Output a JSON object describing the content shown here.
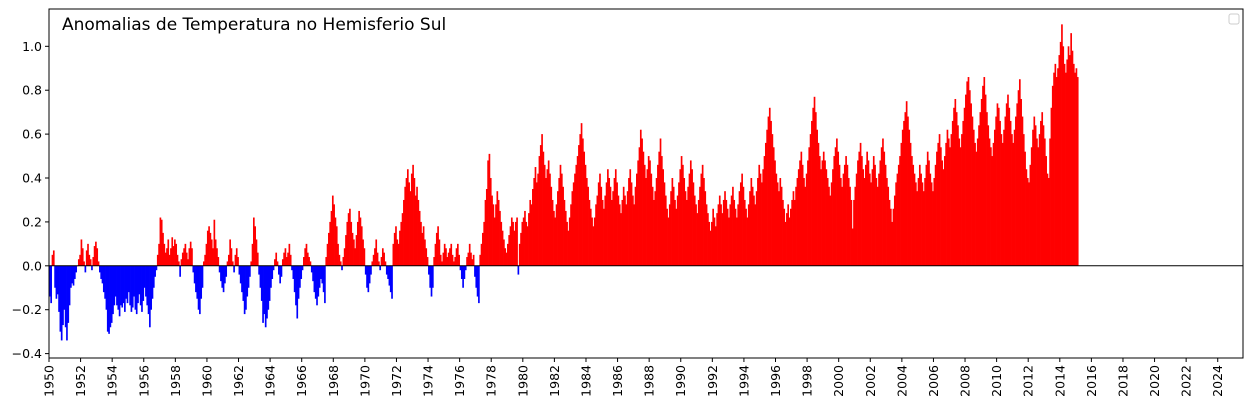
{
  "chart_data": {
    "type": "bar",
    "title": "Anomalias de Temperatura no Hemisferio Sul",
    "xlabel": "",
    "ylabel": "",
    "x_range": [
      1950,
      2025.6
    ],
    "ylim": [
      -0.42,
      1.17
    ],
    "x_ticks": [
      "1950",
      "1952",
      "1954",
      "1956",
      "1958",
      "1960",
      "1962",
      "1964",
      "1966",
      "1968",
      "1970",
      "1972",
      "1974",
      "1976",
      "1978",
      "1980",
      "1982",
      "1984",
      "1986",
      "1988",
      "1990",
      "1992",
      "1994",
      "1996",
      "1998",
      "2000",
      "2002",
      "2004",
      "2006",
      "2008",
      "2010",
      "2012",
      "2014",
      "2016",
      "2018",
      "2020",
      "2022",
      "2024"
    ],
    "y_ticks": [
      "−0.4",
      "−0.2",
      "0.0",
      "0.2",
      "0.4",
      "0.6",
      "0.8",
      "1.0"
    ],
    "y_tick_values": [
      -0.4,
      -0.2,
      0.0,
      0.2,
      0.4,
      0.6,
      0.8,
      1.0
    ],
    "positive_color": "#ff0000",
    "negative_color": "#0000ff",
    "grid": false,
    "legend": "top-right (empty)",
    "series": [
      {
        "frequency": "monthly",
        "start": "1950-01",
        "values": [
          -0.14,
          -0.17,
          0.05,
          0.07,
          -0.1,
          -0.15,
          -0.13,
          -0.21,
          -0.3,
          -0.34,
          -0.27,
          -0.2,
          -0.28,
          -0.34,
          -0.26,
          -0.18,
          -0.1,
          -0.08,
          -0.09,
          -0.06,
          -0.03,
          0.0,
          0.03,
          0.05,
          0.12,
          0.08,
          0.02,
          -0.03,
          0.07,
          0.1,
          0.05,
          0.03,
          -0.02,
          0.04,
          0.09,
          0.11,
          0.08,
          0.02,
          -0.03,
          -0.06,
          -0.08,
          -0.12,
          -0.15,
          -0.2,
          -0.3,
          -0.31,
          -0.28,
          -0.26,
          -0.22,
          -0.18,
          -0.14,
          -0.18,
          -0.2,
          -0.23,
          -0.18,
          -0.19,
          -0.17,
          -0.21,
          -0.15,
          -0.17,
          -0.12,
          -0.18,
          -0.21,
          -0.19,
          -0.14,
          -0.2,
          -0.22,
          -0.17,
          -0.13,
          -0.18,
          -0.21,
          -0.16,
          -0.1,
          -0.14,
          -0.18,
          -0.22,
          -0.28,
          -0.2,
          -0.15,
          -0.1,
          -0.05,
          -0.02,
          0.05,
          0.1,
          0.22,
          0.21,
          0.15,
          0.1,
          0.06,
          0.08,
          0.12,
          0.05,
          0.08,
          0.13,
          0.09,
          0.12,
          0.1,
          0.05,
          0.02,
          -0.05,
          0.03,
          0.06,
          0.08,
          0.1,
          0.06,
          0.03,
          0.08,
          0.11,
          0.08,
          -0.03,
          -0.08,
          -0.12,
          -0.15,
          -0.2,
          -0.22,
          -0.15,
          -0.1,
          0.02,
          0.05,
          0.1,
          0.16,
          0.18,
          0.15,
          0.12,
          0.08,
          0.21,
          0.12,
          0.08,
          0.04,
          -0.03,
          -0.07,
          -0.1,
          -0.12,
          -0.08,
          -0.05,
          0.02,
          0.05,
          0.12,
          0.08,
          0.02,
          -0.03,
          0.05,
          0.08,
          0.04,
          -0.04,
          -0.08,
          -0.12,
          -0.16,
          -0.22,
          -0.2,
          -0.14,
          -0.1,
          -0.05,
          0.02,
          0.1,
          0.22,
          0.18,
          0.12,
          0.06,
          -0.04,
          -0.1,
          -0.16,
          -0.26,
          -0.22,
          -0.28,
          -0.24,
          -0.2,
          -0.16,
          -0.1,
          -0.06,
          -0.02,
          0.03,
          0.06,
          0.02,
          -0.04,
          -0.08,
          -0.05,
          0.03,
          0.06,
          0.08,
          0.04,
          0.06,
          0.1,
          0.05,
          -0.02,
          -0.06,
          -0.12,
          -0.18,
          -0.24,
          -0.15,
          -0.1,
          -0.06,
          -0.02,
          0.04,
          0.08,
          0.1,
          0.06,
          0.04,
          0.02,
          -0.03,
          -0.07,
          -0.12,
          -0.15,
          -0.18,
          -0.14,
          -0.1,
          -0.06,
          -0.08,
          -0.12,
          -0.17,
          0.04,
          0.1,
          0.15,
          0.2,
          0.25,
          0.32,
          0.28,
          0.22,
          0.18,
          0.1,
          0.05,
          0.02,
          -0.02,
          0.04,
          0.08,
          0.14,
          0.2,
          0.24,
          0.26,
          0.2,
          0.15,
          0.12,
          0.08,
          0.14,
          0.2,
          0.25,
          0.22,
          0.18,
          0.12,
          0.08,
          -0.04,
          -0.1,
          -0.12,
          -0.08,
          -0.04,
          0.02,
          0.05,
          0.08,
          0.12,
          0.06,
          0.02,
          -0.02,
          0.04,
          0.08,
          0.06,
          0.02,
          -0.04,
          -0.06,
          -0.09,
          -0.12,
          -0.15,
          0.1,
          0.15,
          0.18,
          0.12,
          0.1,
          0.16,
          0.2,
          0.24,
          0.3,
          0.36,
          0.4,
          0.44,
          0.38,
          0.34,
          0.42,
          0.46,
          0.4,
          0.32,
          0.36,
          0.3,
          0.25,
          0.2,
          0.15,
          0.18,
          0.12,
          0.08,
          0.04,
          -0.04,
          -0.1,
          -0.14,
          -0.1,
          0.04,
          0.1,
          0.15,
          0.18,
          0.12,
          0.05,
          0.02,
          0.06,
          0.1,
          0.08,
          0.04,
          0.06,
          0.08,
          0.1,
          0.05,
          0.02,
          0.04,
          0.08,
          0.1,
          0.05,
          -0.02,
          -0.06,
          -0.1,
          -0.06,
          -0.02,
          0.04,
          0.06,
          0.1,
          0.06,
          0.03,
          0.05,
          -0.05,
          -0.1,
          -0.14,
          -0.17,
          0.05,
          0.1,
          0.15,
          0.2,
          0.3,
          0.35,
          0.48,
          0.51,
          0.4,
          0.32,
          0.28,
          0.22,
          0.28,
          0.34,
          0.3,
          0.25,
          0.2,
          0.16,
          0.12,
          0.08,
          0.06,
          0.1,
          0.14,
          0.18,
          0.22,
          0.2,
          0.16,
          0.2,
          0.22,
          -0.04,
          0.1,
          0.15,
          0.2,
          0.22,
          0.25,
          0.2,
          0.18,
          0.24,
          0.3,
          0.28,
          0.35,
          0.4,
          0.45,
          0.38,
          0.42,
          0.5,
          0.55,
          0.6,
          0.52,
          0.46,
          0.4,
          0.44,
          0.48,
          0.42,
          0.36,
          0.3,
          0.25,
          0.22,
          0.28,
          0.34,
          0.4,
          0.46,
          0.42,
          0.36,
          0.3,
          0.25,
          0.2,
          0.16,
          0.22,
          0.28,
          0.34,
          0.38,
          0.42,
          0.46,
          0.5,
          0.55,
          0.6,
          0.65,
          0.58,
          0.52,
          0.46,
          0.4,
          0.36,
          0.3,
          0.26,
          0.22,
          0.18,
          0.22,
          0.28,
          0.32,
          0.38,
          0.42,
          0.36,
          0.3,
          0.26,
          0.32,
          0.38,
          0.44,
          0.4,
          0.36,
          0.3,
          0.34,
          0.4,
          0.44,
          0.38,
          0.32,
          0.28,
          0.24,
          0.3,
          0.36,
          0.32,
          0.28,
          0.34,
          0.4,
          0.44,
          0.38,
          0.32,
          0.28,
          0.36,
          0.42,
          0.48,
          0.54,
          0.62,
          0.58,
          0.52,
          0.46,
          0.4,
          0.44,
          0.5,
          0.48,
          0.42,
          0.36,
          0.3,
          0.34,
          0.4,
          0.46,
          0.52,
          0.58,
          0.5,
          0.44,
          0.38,
          0.32,
          0.26,
          0.22,
          0.28,
          0.34,
          0.4,
          0.36,
          0.3,
          0.26,
          0.32,
          0.38,
          0.44,
          0.5,
          0.46,
          0.4,
          0.34,
          0.3,
          0.36,
          0.42,
          0.48,
          0.44,
          0.38,
          0.32,
          0.28,
          0.24,
          0.3,
          0.36,
          0.42,
          0.46,
          0.4,
          0.34,
          0.28,
          0.24,
          0.2,
          0.16,
          0.2,
          0.26,
          0.22,
          0.18,
          0.24,
          0.28,
          0.32,
          0.28,
          0.24,
          0.3,
          0.34,
          0.3,
          0.26,
          0.22,
          0.28,
          0.32,
          0.36,
          0.3,
          0.26,
          0.22,
          0.28,
          0.34,
          0.38,
          0.42,
          0.36,
          0.3,
          0.26,
          0.22,
          0.28,
          0.34,
          0.4,
          0.36,
          0.32,
          0.28,
          0.34,
          0.4,
          0.46,
          0.42,
          0.38,
          0.44,
          0.5,
          0.56,
          0.62,
          0.68,
          0.72,
          0.66,
          0.6,
          0.54,
          0.48,
          0.42,
          0.38,
          0.34,
          0.4,
          0.36,
          0.3,
          0.26,
          0.2,
          0.24,
          0.28,
          0.22,
          0.26,
          0.3,
          0.34,
          0.3,
          0.36,
          0.4,
          0.44,
          0.48,
          0.52,
          0.46,
          0.4,
          0.36,
          0.42,
          0.48,
          0.54,
          0.6,
          0.66,
          0.72,
          0.77,
          0.7,
          0.62,
          0.56,
          0.5,
          0.44,
          0.48,
          0.52,
          0.48,
          0.44,
          0.4,
          0.36,
          0.32,
          0.38,
          0.44,
          0.5,
          0.54,
          0.58,
          0.52,
          0.46,
          0.4,
          0.36,
          0.42,
          0.46,
          0.5,
          0.46,
          0.4,
          0.36,
          0.3,
          0.17,
          0.3,
          0.36,
          0.42,
          0.48,
          0.52,
          0.56,
          0.5,
          0.44,
          0.4,
          0.46,
          0.52,
          0.48,
          0.42,
          0.38,
          0.44,
          0.5,
          0.46,
          0.4,
          0.36,
          0.42,
          0.48,
          0.54,
          0.58,
          0.52,
          0.46,
          0.4,
          0.36,
          0.3,
          0.26,
          0.2,
          0.26,
          0.32,
          0.38,
          0.42,
          0.46,
          0.5,
          0.56,
          0.62,
          0.66,
          0.7,
          0.75,
          0.68,
          0.62,
          0.56,
          0.5,
          0.46,
          0.42,
          0.38,
          0.34,
          0.4,
          0.46,
          0.42,
          0.38,
          0.34,
          0.4,
          0.46,
          0.52,
          0.48,
          0.42,
          0.38,
          0.34,
          0.4,
          0.46,
          0.52,
          0.56,
          0.6,
          0.54,
          0.48,
          0.44,
          0.5,
          0.56,
          0.62,
          0.58,
          0.54,
          0.6,
          0.66,
          0.72,
          0.76,
          0.7,
          0.64,
          0.58,
          0.54,
          0.6,
          0.66,
          0.72,
          0.78,
          0.84,
          0.86,
          0.8,
          0.74,
          0.68,
          0.62,
          0.56,
          0.52,
          0.58,
          0.64,
          0.7,
          0.76,
          0.82,
          0.86,
          0.78,
          0.7,
          0.64,
          0.58,
          0.54,
          0.5,
          0.56,
          0.62,
          0.68,
          0.74,
          0.72,
          0.66,
          0.6,
          0.56,
          0.62,
          0.68,
          0.74,
          0.78,
          0.72,
          0.66,
          0.6,
          0.56,
          0.62,
          0.68,
          0.74,
          0.8,
          0.85,
          0.76,
          0.68,
          0.6,
          0.52,
          0.44,
          0.4,
          0.38,
          0.46,
          0.54,
          0.62,
          0.68,
          0.64,
          0.58,
          0.54,
          0.6,
          0.66,
          0.7,
          0.64,
          0.58,
          0.5,
          0.42,
          0.4,
          0.58,
          0.72,
          0.82,
          0.88,
          0.92,
          0.86,
          0.9,
          0.96,
          1.02,
          1.1,
          1.0,
          0.92,
          0.88,
          0.94,
          1.0,
          0.96,
          1.06,
          0.98,
          0.92,
          0.88,
          0.9,
          0.86
        ]
      }
    ]
  }
}
